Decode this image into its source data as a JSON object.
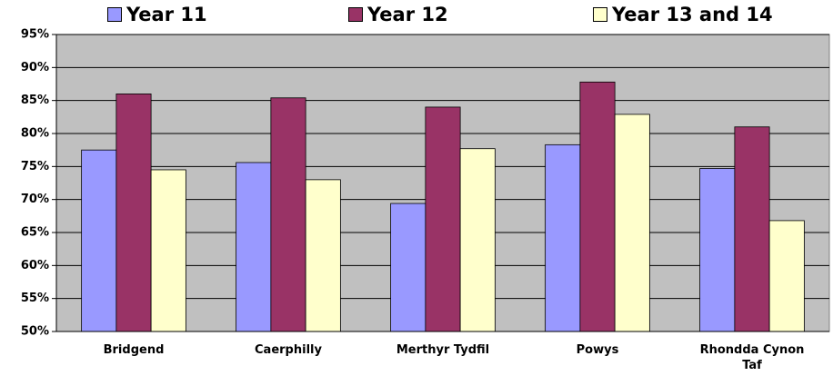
{
  "chart_data": {
    "type": "bar",
    "categories": [
      "Bridgend",
      "Caerphilly",
      "Merthyr Tydfil",
      "Powys",
      "Rhondda Cynon Taf"
    ],
    "series": [
      {
        "name": "Year 11",
        "color": "#9999ff",
        "values": [
          77.5,
          75.6,
          69.4,
          78.3,
          74.7
        ]
      },
      {
        "name": "Year 12",
        "color": "#993366",
        "values": [
          86,
          85.4,
          84,
          87.8,
          81
        ]
      },
      {
        "name": "Year 13 and 14",
        "color": "#ffffcc",
        "values": [
          74.5,
          73,
          77.7,
          82.9,
          66.8
        ]
      }
    ],
    "ylim": [
      50,
      95
    ],
    "yticks": [
      {
        "value": 50,
        "label": "50%"
      },
      {
        "value": 55,
        "label": "55%"
      },
      {
        "value": 60,
        "label": "60%"
      },
      {
        "value": 65,
        "label": "65%"
      },
      {
        "value": 70,
        "label": "70%"
      },
      {
        "value": 75,
        "label": "75%"
      },
      {
        "value": 80,
        "label": "80%"
      },
      {
        "value": 85,
        "label": "85%"
      },
      {
        "value": 90,
        "label": "90%"
      },
      {
        "value": 95,
        "label": "95%"
      }
    ],
    "grid": true,
    "legend": "top"
  }
}
